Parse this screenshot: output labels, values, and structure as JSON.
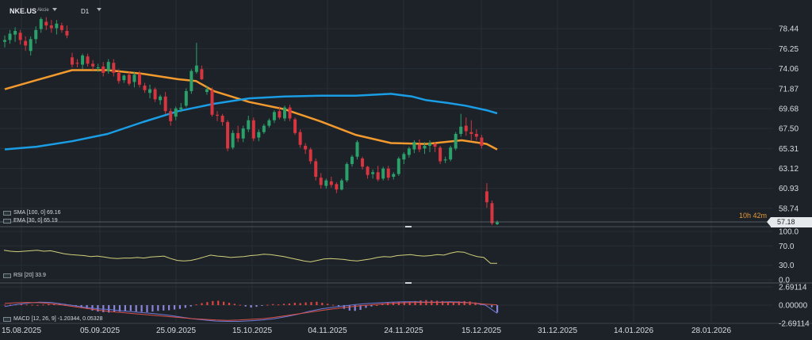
{
  "toolbar": {
    "symbol": "NKE.US",
    "instrument_type": "Akcie",
    "timeframe": "D1"
  },
  "price_panel": {
    "countdown": "10h 42m",
    "last_price": "57.18"
  },
  "rsi_panel": {
    "levels": [
      "100.0",
      "70.0",
      "30.0",
      "0.0"
    ]
  },
  "macd_panel": {
    "levels": [
      "2.69114",
      "0.00000",
      "-2.69114"
    ]
  },
  "legends": {
    "sma": "SMA [100, 0] 69.16",
    "ema": "EMA [30, 0] 65.19",
    "rsi": "RSI [20] 33.9",
    "macd": "MACD [12, 26, 9] -1.20344, 0.05328"
  },
  "chart_data": [
    {
      "type": "candlestick",
      "panel": "price",
      "y_axis_ticks": [
        "78.44",
        "76.25",
        "74.06",
        "71.87",
        "69.68",
        "67.50",
        "65.31",
        "63.12",
        "60.93",
        "58.74"
      ],
      "ylim": [
        56.9,
        80.2
      ],
      "x_axis_ticks": [
        "15.08.2025",
        "05.09.2025",
        "25.09.2025",
        "15.10.2025",
        "04.11.2025",
        "24.11.2025",
        "15.12.2025",
        "31.12.2025",
        "14.01.2026",
        "28.01.2026"
      ],
      "ohlc": [
        [
          77.0,
          77.7,
          76.4,
          77.2
        ],
        [
          77.2,
          78.3,
          76.8,
          77.9
        ],
        [
          77.8,
          78.6,
          77.0,
          78.2
        ],
        [
          78.0,
          78.3,
          76.7,
          77.2
        ],
        [
          77.1,
          77.6,
          76.0,
          76.6
        ],
        [
          76.0,
          77.6,
          75.5,
          77.3
        ],
        [
          77.3,
          78.7,
          76.8,
          78.3
        ],
        [
          78.4,
          79.7,
          78.0,
          79.5
        ],
        [
          79.2,
          79.7,
          78.3,
          78.8
        ],
        [
          78.8,
          79.4,
          78.0,
          78.5
        ],
        [
          78.5,
          79.4,
          77.8,
          79.0
        ],
        [
          78.8,
          79.1,
          78.0,
          78.3
        ],
        [
          78.2,
          78.8,
          77.4,
          77.7
        ],
        [
          75.3,
          75.8,
          74.2,
          74.5
        ],
        [
          74.7,
          75.1,
          74.2,
          74.6
        ],
        [
          74.5,
          75.7,
          74.0,
          75.5
        ],
        [
          75.4,
          75.7,
          74.3,
          74.6
        ],
        [
          74.6,
          75.0,
          73.9,
          74.3
        ],
        [
          74.1,
          74.6,
          73.7,
          74.2
        ],
        [
          74.3,
          74.8,
          73.2,
          73.6
        ],
        [
          73.8,
          75.1,
          73.5,
          74.8
        ],
        [
          74.7,
          75.1,
          73.2,
          73.6
        ],
        [
          73.6,
          74.0,
          72.4,
          72.7
        ],
        [
          72.8,
          73.4,
          72.5,
          73.3
        ],
        [
          73.4,
          73.7,
          72.2,
          72.4
        ],
        [
          72.6,
          73.7,
          72.0,
          73.4
        ],
        [
          73.5,
          73.8,
          72.0,
          72.3
        ],
        [
          72.2,
          72.5,
          71.4,
          71.7
        ],
        [
          71.4,
          72.3,
          70.8,
          71.8
        ],
        [
          71.8,
          72.0,
          70.4,
          70.7
        ],
        [
          70.6,
          71.2,
          70.1,
          71.0
        ],
        [
          71.0,
          71.5,
          69.1,
          69.4
        ],
        [
          69.4,
          69.7,
          67.8,
          68.3
        ],
        [
          68.8,
          69.9,
          68.4,
          69.7
        ],
        [
          69.6,
          70.3,
          69.3,
          69.8
        ],
        [
          70.0,
          71.9,
          69.8,
          71.6
        ],
        [
          71.6,
          74.0,
          71.3,
          73.8
        ],
        [
          73.7,
          76.9,
          73.5,
          74.4
        ],
        [
          74.0,
          74.4,
          72.8,
          72.9
        ],
        [
          71.5,
          72.2,
          71.2,
          71.8
        ],
        [
          71.7,
          72.0,
          68.8,
          69.0
        ],
        [
          69.0,
          69.4,
          68.3,
          68.9
        ],
        [
          68.9,
          69.1,
          67.8,
          68.2
        ],
        [
          68.2,
          68.4,
          65.0,
          65.3
        ],
        [
          65.4,
          67.3,
          65.2,
          67.0
        ],
        [
          67.0,
          67.8,
          66.0,
          66.4
        ],
        [
          66.4,
          67.8,
          66.0,
          67.5
        ],
        [
          67.4,
          68.9,
          67.1,
          68.4
        ],
        [
          68.4,
          68.7,
          66.1,
          66.4
        ],
        [
          66.5,
          67.4,
          66.1,
          67.1
        ],
        [
          67.1,
          68.0,
          66.9,
          67.8
        ],
        [
          67.8,
          68.6,
          67.6,
          68.4
        ],
        [
          68.4,
          69.5,
          68.1,
          69.3
        ],
        [
          69.4,
          69.9,
          68.5,
          68.7
        ],
        [
          68.6,
          70.0,
          68.3,
          69.8
        ],
        [
          69.8,
          70.1,
          68.3,
          68.6
        ],
        [
          68.5,
          68.7,
          66.8,
          67.0
        ],
        [
          67.1,
          67.4,
          65.4,
          65.7
        ],
        [
          65.6,
          65.9,
          64.7,
          65.2
        ],
        [
          65.2,
          65.4,
          63.6,
          63.9
        ],
        [
          63.9,
          64.2,
          61.8,
          62.2
        ],
        [
          62.1,
          62.6,
          60.9,
          61.3
        ],
        [
          61.2,
          62.0,
          60.9,
          61.8
        ],
        [
          61.7,
          62.2,
          61.0,
          61.3
        ],
        [
          61.4,
          61.6,
          60.4,
          60.8
        ],
        [
          60.8,
          62.0,
          60.7,
          61.8
        ],
        [
          61.8,
          63.8,
          61.6,
          63.6
        ],
        [
          63.6,
          64.6,
          63.3,
          64.4
        ],
        [
          64.4,
          66.2,
          64.1,
          66.0
        ],
        [
          64.2,
          64.4,
          63.0,
          63.3
        ],
        [
          63.3,
          63.4,
          62.0,
          62.4
        ],
        [
          62.5,
          63.0,
          62.0,
          62.7
        ],
        [
          62.7,
          63.4,
          61.7,
          61.9
        ],
        [
          62.0,
          63.3,
          61.8,
          63.1
        ],
        [
          63.1,
          63.4,
          61.8,
          62.1
        ],
        [
          62.2,
          62.7,
          61.9,
          62.5
        ],
        [
          62.5,
          64.4,
          62.3,
          64.2
        ],
        [
          64.1,
          64.9,
          63.6,
          64.7
        ],
        [
          64.6,
          65.5,
          64.3,
          65.3
        ],
        [
          65.2,
          66.2,
          64.8,
          66.0
        ],
        [
          65.7,
          66.3,
          64.9,
          65.2
        ],
        [
          65.3,
          66.0,
          64.7,
          65.6
        ],
        [
          65.6,
          66.2,
          64.9,
          65.9
        ],
        [
          65.8,
          66.0,
          64.9,
          65.5
        ],
        [
          65.4,
          65.6,
          63.6,
          63.9
        ],
        [
          64.0,
          64.4,
          63.7,
          64.1
        ],
        [
          64.1,
          65.6,
          63.9,
          65.4
        ],
        [
          65.3,
          67.1,
          65.1,
          66.9
        ],
        [
          66.9,
          69.1,
          66.6,
          67.7
        ],
        [
          67.8,
          68.7,
          66.7,
          67.2
        ],
        [
          67.1,
          68.4,
          66.2,
          66.9
        ],
        [
          66.9,
          67.4,
          66.2,
          66.6
        ],
        [
          66.5,
          66.8,
          65.3,
          65.6
        ],
        [
          60.6,
          61.5,
          58.8,
          59.4
        ],
        [
          59.3,
          59.6,
          56.9,
          57.1
        ],
        [
          57.0,
          57.4,
          56.9,
          57.2
        ]
      ],
      "series": [
        {
          "name": "SMA [100, 0]",
          "color": "#1a9de4",
          "values": [
            [
              0,
              65.2
            ],
            [
              9,
              65.5
            ],
            [
              19,
              66.1
            ],
            [
              29,
              66.9
            ],
            [
              39,
              68.2
            ],
            [
              49,
              69.4
            ],
            [
              59,
              70.2
            ],
            [
              69,
              70.8
            ],
            [
              79,
              71.0
            ],
            [
              89,
              71.1
            ],
            [
              99,
              71.1
            ],
            [
              109,
              71.3
            ],
            [
              115,
              71.0
            ],
            [
              119,
              70.6
            ],
            [
              125,
              70.3
            ],
            [
              130,
              70.0
            ],
            [
              136,
              69.5
            ],
            [
              139,
              69.16
            ]
          ]
        },
        {
          "name": "EMA [30, 0]",
          "color": "#f29a2e",
          "values": [
            [
              0,
              71.8
            ],
            [
              9,
              72.8
            ],
            [
              19,
              73.9
            ],
            [
              29,
              73.9
            ],
            [
              39,
              73.5
            ],
            [
              49,
              72.9
            ],
            [
              54,
              72.7
            ],
            [
              59,
              71.6
            ],
            [
              69,
              70.4
            ],
            [
              79,
              69.6
            ],
            [
              89,
              68.3
            ],
            [
              99,
              66.8
            ],
            [
              109,
              65.9
            ],
            [
              119,
              65.8
            ],
            [
              129,
              66.2
            ],
            [
              136,
              65.8
            ],
            [
              139,
              65.19
            ]
          ]
        }
      ]
    },
    {
      "type": "line",
      "panel": "rsi",
      "name": "RSI [20]",
      "ylim": [
        0,
        100
      ],
      "color": "#d2d07a",
      "values": [
        61,
        59,
        58,
        59,
        60,
        61,
        59,
        60,
        57,
        54,
        52,
        51,
        50,
        48,
        49,
        47,
        45,
        44,
        45,
        45,
        46,
        45,
        47,
        48,
        49,
        44,
        40,
        39,
        40,
        43,
        47,
        51,
        49,
        48,
        46,
        47,
        48,
        50,
        51,
        53,
        52,
        50,
        48,
        45,
        42,
        39,
        37,
        40,
        43,
        44,
        43,
        42,
        40,
        39,
        41,
        43,
        46,
        48,
        47,
        50,
        51,
        52,
        50,
        49,
        50,
        52,
        51,
        55,
        58,
        57,
        52,
        48,
        46,
        34,
        33.9
      ]
    },
    {
      "type": "bar",
      "panel": "macd",
      "name": "MACD [12, 26, 9]",
      "ylim": [
        -2.69114,
        2.69114
      ],
      "positive_color": "#e0453f",
      "negative_color": "#8b84db",
      "histogram": [
        0.05,
        0.08,
        0.1,
        0.12,
        0.1,
        0.06,
        0.02,
        0.08,
        0.15,
        0.2,
        0.25,
        0.18,
        0.08,
        -0.1,
        -0.35,
        -0.55,
        -0.8,
        -0.95,
        -1.05,
        -1.1,
        -1.05,
        -0.95,
        -0.9,
        -0.85,
        -0.95,
        -1.0,
        -1.05,
        -0.95,
        -0.85,
        -0.8,
        -0.75,
        -0.65,
        -0.55,
        -0.4,
        -0.2,
        0.1,
        0.3,
        0.45,
        0.6,
        0.65,
        0.5,
        0.35,
        0.2,
        0.05,
        -0.2,
        -0.35,
        -0.25,
        -0.1,
        0.05,
        0.15,
        0.1,
        0.2,
        0.25,
        0.35,
        0.3,
        0.4,
        0.45,
        0.5,
        0.35,
        0.2,
        0.05,
        -0.25,
        -0.55,
        -0.8,
        -0.85,
        -0.7,
        -0.4,
        -0.2,
        0.0,
        0.25,
        0.35,
        0.45,
        0.5,
        0.55,
        0.55,
        0.6,
        0.7,
        0.75,
        0.7,
        0.65,
        0.6,
        0.5,
        0.45,
        0.55,
        0.6,
        0.55,
        0.4,
        0.25,
        0.0,
        -0.3,
        -1.1
      ],
      "macd_line": [
        -0.2,
        0.1,
        0.3,
        0.45,
        0.4,
        0.15,
        -0.1,
        -0.35,
        -0.55,
        -0.65,
        -0.85,
        -1.0,
        -1.15,
        -1.3,
        -1.5,
        -1.75,
        -2.0,
        -2.2,
        -2.35,
        -2.4,
        -2.4,
        -2.3,
        -2.2,
        -2.0,
        -1.7,
        -1.35,
        -0.9,
        -0.55,
        -0.3,
        -0.1,
        0.1,
        0.25,
        0.35,
        0.45,
        0.5,
        0.5,
        0.45,
        0.45,
        0.5,
        0.45,
        0.3,
        0.0,
        -1.2
      ],
      "signal_line": [
        0.25,
        0.35,
        0.4,
        0.35,
        0.2,
        0.0,
        -0.25,
        -0.5,
        -0.75,
        -0.95,
        -1.1,
        -1.25,
        -1.4,
        -1.55,
        -1.7,
        -1.85,
        -2.0,
        -2.1,
        -2.2,
        -2.25,
        -2.2,
        -2.1,
        -2.0,
        -1.8,
        -1.55,
        -1.3,
        -1.05,
        -0.8,
        -0.55,
        -0.35,
        -0.15,
        0.0,
        0.15,
        0.25,
        0.35,
        0.4,
        0.4,
        0.4,
        0.4,
        0.38,
        0.3,
        0.15,
        0.05
      ]
    }
  ]
}
